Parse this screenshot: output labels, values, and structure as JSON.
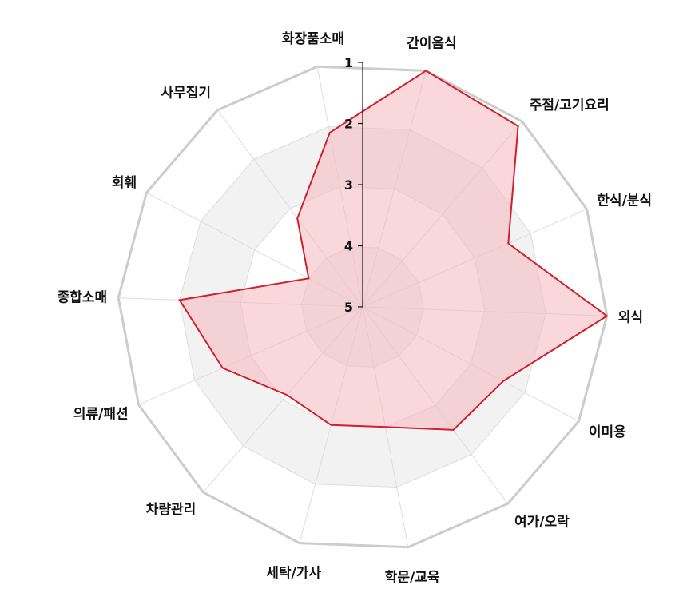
{
  "chart_data": {
    "type": "radar",
    "categories": [
      "간이음식",
      "주점/고기요리",
      "한식/분식",
      "외식",
      "이미용",
      "여가/오락",
      "학문/교육",
      "세탁/가사",
      "차량관리",
      "의류/패션",
      "종합소매",
      "회훼",
      "사무집기",
      "화장품소매"
    ],
    "values": [
      1,
      1.1,
      2.4,
      1,
      2.4,
      2.5,
      3.0,
      3.0,
      3.1,
      2.5,
      2.0,
      4.0,
      3.2,
      2.1
    ],
    "axis": {
      "ticks": [
        1,
        2,
        3,
        4,
        5
      ],
      "range": [
        5,
        1
      ],
      "reversed": true
    },
    "colors": {
      "fill": "#f4b6be",
      "stroke": "#d0202c",
      "band_fill": "#f2f2f2",
      "web_outer": "#cccccc",
      "grid": "#dddddd",
      "axis": "#111111"
    },
    "grid": true
  }
}
